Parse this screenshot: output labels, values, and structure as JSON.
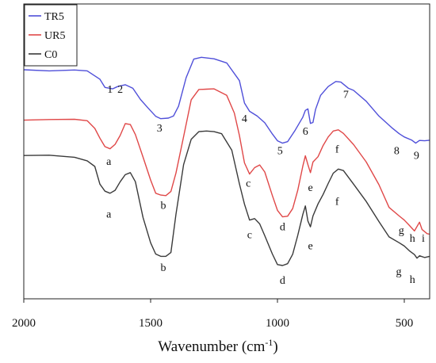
{
  "chart_data": {
    "type": "line",
    "xlabel": "Wavenumber (cm",
    "xlabel_sup": "-1",
    "xlabel_close": ")",
    "ylabel": "",
    "xlim": [
      2000,
      400
    ],
    "x_reversed": true,
    "ylim": [
      0,
      100
    ],
    "y_ticks_shown": false,
    "grid": false,
    "legend_position": "top-left",
    "x_ticks": [
      {
        "value": 2000,
        "label": "2000"
      },
      {
        "value": 1500,
        "label": "1500"
      },
      {
        "value": 1000,
        "label": "1000"
      },
      {
        "value": 500,
        "label": "500"
      }
    ],
    "series": [
      {
        "name": "TR5",
        "color": "#4f4fd9",
        "points": [
          [
            2000,
            77.7
          ],
          [
            1900,
            77.3
          ],
          [
            1800,
            77.6
          ],
          [
            1750,
            77.3
          ],
          [
            1700,
            74.5
          ],
          [
            1680,
            71.7
          ],
          [
            1650,
            71.2
          ],
          [
            1630,
            72.0
          ],
          [
            1600,
            72.6
          ],
          [
            1570,
            71.4
          ],
          [
            1540,
            67.6
          ],
          [
            1510,
            64.7
          ],
          [
            1480,
            61.9
          ],
          [
            1460,
            61.1
          ],
          [
            1430,
            61.3
          ],
          [
            1410,
            62.0
          ],
          [
            1390,
            65.3
          ],
          [
            1360,
            75.0
          ],
          [
            1330,
            81.3
          ],
          [
            1300,
            81.9
          ],
          [
            1250,
            81.4
          ],
          [
            1200,
            80.0
          ],
          [
            1150,
            74.0
          ],
          [
            1130,
            66.4
          ],
          [
            1110,
            63.6
          ],
          [
            1080,
            62.0
          ],
          [
            1050,
            59.7
          ],
          [
            1020,
            55.9
          ],
          [
            1000,
            53.6
          ],
          [
            980,
            52.8
          ],
          [
            960,
            53.3
          ],
          [
            930,
            57.2
          ],
          [
            900,
            61.6
          ],
          [
            890,
            63.9
          ],
          [
            880,
            64.4
          ],
          [
            870,
            59.5
          ],
          [
            860,
            59.8
          ],
          [
            850,
            64.2
          ],
          [
            830,
            69.0
          ],
          [
            800,
            72.0
          ],
          [
            770,
            73.7
          ],
          [
            750,
            73.5
          ],
          [
            720,
            71.4
          ],
          [
            700,
            70.7
          ],
          [
            650,
            67.0
          ],
          [
            600,
            62.0
          ],
          [
            550,
            58.1
          ],
          [
            520,
            56.0
          ],
          [
            500,
            54.9
          ],
          [
            470,
            53.8
          ],
          [
            455,
            52.8
          ],
          [
            440,
            53.7
          ],
          [
            420,
            53.6
          ],
          [
            400,
            53.8
          ]
        ]
      },
      {
        "name": "UR5",
        "color": "#e04848",
        "points": [
          [
            2000,
            60.6
          ],
          [
            1900,
            60.8
          ],
          [
            1800,
            60.9
          ],
          [
            1750,
            60.4
          ],
          [
            1720,
            57.8
          ],
          [
            1700,
            54.5
          ],
          [
            1680,
            51.6
          ],
          [
            1660,
            50.9
          ],
          [
            1640,
            52.4
          ],
          [
            1620,
            55.4
          ],
          [
            1600,
            59.4
          ],
          [
            1580,
            59.1
          ],
          [
            1560,
            55.7
          ],
          [
            1530,
            48.1
          ],
          [
            1500,
            40.3
          ],
          [
            1480,
            35.8
          ],
          [
            1460,
            35.2
          ],
          [
            1440,
            35.0
          ],
          [
            1420,
            36.4
          ],
          [
            1400,
            42.7
          ],
          [
            1370,
            55.0
          ],
          [
            1340,
            67.5
          ],
          [
            1310,
            71.0
          ],
          [
            1280,
            71.1
          ],
          [
            1250,
            71.2
          ],
          [
            1200,
            69.0
          ],
          [
            1170,
            63.0
          ],
          [
            1150,
            55.4
          ],
          [
            1130,
            46.1
          ],
          [
            1110,
            42.3
          ],
          [
            1090,
            44.5
          ],
          [
            1070,
            45.4
          ],
          [
            1050,
            43.0
          ],
          [
            1020,
            35.0
          ],
          [
            1000,
            30.0
          ],
          [
            980,
            27.8
          ],
          [
            960,
            28.0
          ],
          [
            940,
            30.6
          ],
          [
            920,
            36.8
          ],
          [
            900,
            45.0
          ],
          [
            890,
            48.5
          ],
          [
            880,
            45.5
          ],
          [
            870,
            42.8
          ],
          [
            860,
            46.4
          ],
          [
            840,
            48.2
          ],
          [
            820,
            52.0
          ],
          [
            800,
            54.9
          ],
          [
            780,
            56.9
          ],
          [
            760,
            57.3
          ],
          [
            740,
            56.1
          ],
          [
            700,
            52.3
          ],
          [
            650,
            46.4
          ],
          [
            600,
            38.7
          ],
          [
            560,
            31.0
          ],
          [
            520,
            28.1
          ],
          [
            500,
            26.7
          ],
          [
            480,
            24.9
          ],
          [
            460,
            23.0
          ],
          [
            440,
            26.0
          ],
          [
            430,
            23.5
          ],
          [
            410,
            22.1
          ],
          [
            400,
            21.9
          ]
        ]
      },
      {
        "name": "C0",
        "color": "#3a3a3a",
        "points": [
          [
            2000,
            48.6
          ],
          [
            1900,
            48.7
          ],
          [
            1800,
            48.0
          ],
          [
            1750,
            46.8
          ],
          [
            1720,
            44.9
          ],
          [
            1700,
            38.9
          ],
          [
            1680,
            36.5
          ],
          [
            1660,
            35.8
          ],
          [
            1640,
            36.8
          ],
          [
            1620,
            39.7
          ],
          [
            1600,
            42.1
          ],
          [
            1580,
            42.8
          ],
          [
            1560,
            39.7
          ],
          [
            1530,
            27.6
          ],
          [
            1500,
            19.0
          ],
          [
            1480,
            15.2
          ],
          [
            1460,
            14.4
          ],
          [
            1440,
            14.4
          ],
          [
            1420,
            15.7
          ],
          [
            1400,
            28.7
          ],
          [
            1370,
            45.5
          ],
          [
            1340,
            54.1
          ],
          [
            1310,
            56.7
          ],
          [
            1280,
            56.9
          ],
          [
            1250,
            56.7
          ],
          [
            1220,
            56.0
          ],
          [
            1180,
            50.4
          ],
          [
            1150,
            39.0
          ],
          [
            1130,
            32.1
          ],
          [
            1110,
            26.7
          ],
          [
            1090,
            27.2
          ],
          [
            1070,
            25.4
          ],
          [
            1050,
            21.4
          ],
          [
            1020,
            15.2
          ],
          [
            1000,
            11.6
          ],
          [
            980,
            11.3
          ],
          [
            960,
            11.9
          ],
          [
            940,
            15.1
          ],
          [
            920,
            21.5
          ],
          [
            900,
            28.6
          ],
          [
            890,
            31.5
          ],
          [
            880,
            26.4
          ],
          [
            870,
            24.4
          ],
          [
            860,
            28.1
          ],
          [
            840,
            32.2
          ],
          [
            820,
            35.4
          ],
          [
            800,
            39.1
          ],
          [
            780,
            42.6
          ],
          [
            760,
            44.0
          ],
          [
            740,
            43.5
          ],
          [
            700,
            38.9
          ],
          [
            650,
            33.0
          ],
          [
            600,
            26.2
          ],
          [
            560,
            21.0
          ],
          [
            520,
            19.0
          ],
          [
            500,
            17.9
          ],
          [
            480,
            16.3
          ],
          [
            460,
            15.0
          ],
          [
            450,
            13.8
          ],
          [
            440,
            14.6
          ],
          [
            420,
            14.0
          ],
          [
            400,
            14.4
          ]
        ]
      }
    ],
    "annotations": [
      {
        "text": "1",
        "x": 1660,
        "y": 69.9
      },
      {
        "text": "2",
        "x": 1620,
        "y": 69.9
      },
      {
        "text": "3",
        "x": 1465,
        "y": 56.7
      },
      {
        "text": "4",
        "x": 1130,
        "y": 60.0
      },
      {
        "text": "5",
        "x": 990,
        "y": 49.0
      },
      {
        "text": "6",
        "x": 890,
        "y": 55.7
      },
      {
        "text": "7",
        "x": 730,
        "y": 68.2
      },
      {
        "text": "8",
        "x": 530,
        "y": 49.0
      },
      {
        "text": "9",
        "x": 452,
        "y": 47.4
      },
      {
        "text": "a",
        "x": 1665,
        "y": 45.4
      },
      {
        "text": "b",
        "x": 1450,
        "y": 30.5
      },
      {
        "text": "c",
        "x": 1115,
        "y": 38.1
      },
      {
        "text": "d",
        "x": 980,
        "y": 23.2
      },
      {
        "text": "e",
        "x": 870,
        "y": 36.5
      },
      {
        "text": "f",
        "x": 765,
        "y": 49.6
      },
      {
        "text": "g",
        "x": 512,
        "y": 22.1
      },
      {
        "text": "h",
        "x": 468,
        "y": 19.4
      },
      {
        "text": "i",
        "x": 425,
        "y": 19.4
      },
      {
        "text": "a",
        "x": 1665,
        "y": 27.6
      },
      {
        "text": "b",
        "x": 1450,
        "y": 9.4
      },
      {
        "text": "c",
        "x": 1110,
        "y": 20.5
      },
      {
        "text": "d",
        "x": 980,
        "y": 5.1
      },
      {
        "text": "e",
        "x": 870,
        "y": 16.8
      },
      {
        "text": "f",
        "x": 765,
        "y": 31.9
      },
      {
        "text": "g",
        "x": 522,
        "y": 8.1
      },
      {
        "text": "h",
        "x": 468,
        "y": 5.4
      }
    ]
  }
}
